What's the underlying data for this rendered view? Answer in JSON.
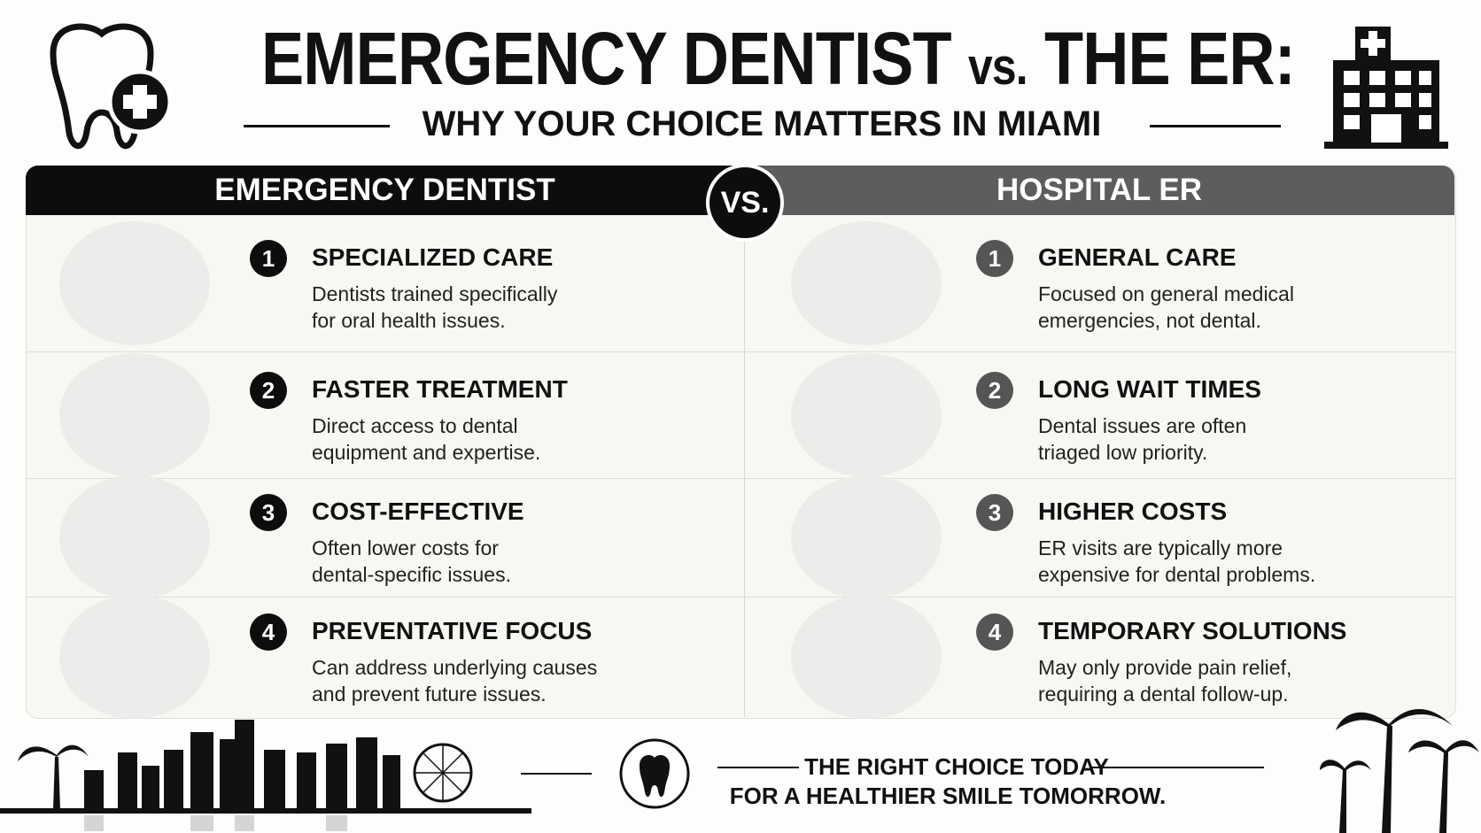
{
  "header": {
    "title_main": "EMERGENCY DENTIST",
    "title_vs": "vs.",
    "title_end": "THE ER:",
    "subtitle": "WHY YOUR CHOICE MATTERS IN MIAMI"
  },
  "comparison": {
    "left_title": "EMERGENCY DENTIST",
    "vs_badge": "VS.",
    "right_title": "HOSPITAL ER",
    "left_items": [
      {
        "number": 1,
        "heading": "SPECIALIZED CARE",
        "lines": [
          "Dentists trained specifically",
          "for oral health issues."
        ]
      },
      {
        "number": 2,
        "heading": "FASTER TREATMENT",
        "lines": [
          "Direct access to dental",
          "equipment and expertise."
        ]
      },
      {
        "number": 3,
        "heading": "COST-EFFECTIVE",
        "lines": [
          "Often lower costs for",
          "dental-specific issues."
        ]
      },
      {
        "number": 4,
        "heading": "PREVENTATIVE FOCUS",
        "lines": [
          "Can address underlying causes",
          "and prevent future issues."
        ]
      }
    ],
    "right_items": [
      {
        "number": 1,
        "heading": "GENERAL CARE",
        "lines": [
          "Focused on general medical",
          "emergencies, not dental."
        ]
      },
      {
        "number": 2,
        "heading": "LONG WAIT TIMES",
        "lines": [
          "Dental issues are often",
          "triaged low priority."
        ]
      },
      {
        "number": 3,
        "heading": "HIGHER COSTS",
        "lines": [
          "ER visits are typically more",
          "expensive for dental problems."
        ]
      },
      {
        "number": 4,
        "heading": "TEMPORARY SOLUTIONS",
        "lines": [
          "May only provide pain relief,",
          "requiring a dental follow-up."
        ]
      }
    ]
  },
  "footer": {
    "line1": "THE RIGHT CHOICE TODAY",
    "line2": "FOR A HEALTHIER SMILE TOMORROW."
  }
}
